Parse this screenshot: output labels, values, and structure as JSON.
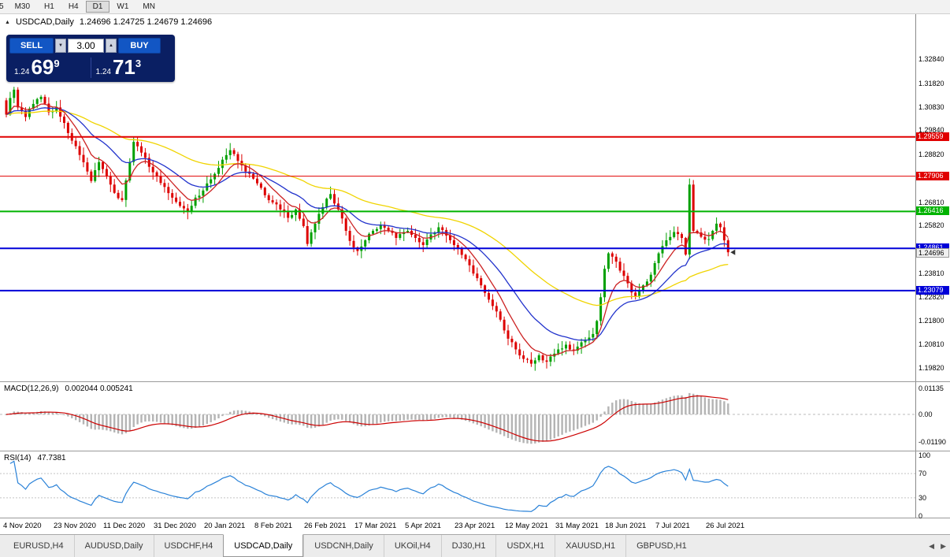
{
  "toolbar": {
    "timeframes": [
      "5",
      "M30",
      "H1",
      "H4",
      "D1",
      "W1",
      "MN"
    ],
    "active": "D1"
  },
  "chart_header": {
    "collapse": "▲",
    "title": "USDCAD,Daily",
    "ohlc": "1.24696 1.24725 1.24679 1.24696"
  },
  "trade_panel": {
    "sell_label": "SELL",
    "buy_label": "BUY",
    "volume": "3.00",
    "spin_down": "▼",
    "spin_up": "▲",
    "sell_price": {
      "prefix": "1.24",
      "big": "69",
      "sup": "9"
    },
    "buy_price": {
      "prefix": "1.24",
      "big": "71",
      "sup": "3"
    }
  },
  "chart_data": {
    "type": "candlestick",
    "symbol": "USDCAD",
    "timeframe": "Daily",
    "current_bar": {
      "open": 1.24696,
      "high": 1.24725,
      "low": 1.24679,
      "close": 1.24696
    },
    "price_axis_labels": [
      "1.32840",
      "1.31820",
      "1.30830",
      "1.29840",
      "1.28820",
      "1.27830",
      "1.26810",
      "1.25820",
      "1.24830",
      "1.23810",
      "1.22820",
      "1.21800",
      "1.20810",
      "1.19820"
    ],
    "date_labels": [
      "4 Nov 2020",
      "23 Nov 2020",
      "11 Dec 2020",
      "31 Dec 2020",
      "20 Jan 2021",
      "8 Feb 2021",
      "26 Feb 2021",
      "17 Mar 2021",
      "5 Apr 2021",
      "23 Apr 2021",
      "12 May 2021",
      "31 May 2021",
      "18 Jun 2021",
      "7 Jul 2021",
      "26 Jul 2021"
    ],
    "candles_per_date_gap": 13,
    "total_candles": 188,
    "first_open": 1.311,
    "up_color": "#00a000",
    "down_color": "#dd0000",
    "moving_averages": [
      {
        "period": 8,
        "color": "#cc2222"
      },
      {
        "period": 21,
        "color": "#2233cc"
      },
      {
        "period": 55,
        "color": "#f0d400"
      }
    ],
    "horizontal_lines": [
      {
        "price": 1.29559,
        "label": "1.29559",
        "color": "#e00000",
        "width": 2
      },
      {
        "price": 1.27906,
        "label": "1.27906",
        "color": "#e00000",
        "width": 1
      },
      {
        "price": 1.26416,
        "label": "1.26416",
        "color": "#00b300",
        "width": 2
      },
      {
        "price": 1.24861,
        "label": "1.24861",
        "color": "#0000d8",
        "width": 2
      },
      {
        "price": 1.23079,
        "label": "1.23079",
        "color": "#0000d8",
        "width": 2
      }
    ],
    "current_price": 1.24696,
    "current_price_label": "1.24696",
    "close_keypoints": [
      [
        0,
        1.305
      ],
      [
        1,
        1.312
      ],
      [
        2,
        1.3155
      ],
      [
        3,
        1.308
      ],
      [
        5,
        1.304
      ],
      [
        7,
        1.3095
      ],
      [
        9,
        1.3125
      ],
      [
        11,
        1.306
      ],
      [
        13,
        1.308
      ],
      [
        15,
        1.3015
      ],
      [
        17,
        1.294
      ],
      [
        19,
        1.288
      ],
      [
        21,
        1.281
      ],
      [
        22,
        1.277
      ],
      [
        24,
        1.285
      ],
      [
        26,
        1.279
      ],
      [
        28,
        1.272
      ],
      [
        30,
        1.269
      ],
      [
        32,
        1.285
      ],
      [
        33,
        1.2935
      ],
      [
        35,
        1.289
      ],
      [
        37,
        1.283
      ],
      [
        39,
        1.279
      ],
      [
        41,
        1.2745
      ],
      [
        43,
        1.27
      ],
      [
        45,
        1.2665
      ],
      [
        47,
        1.264
      ],
      [
        49,
        1.27
      ],
      [
        51,
        1.273
      ],
      [
        52,
        1.276
      ],
      [
        54,
        1.28
      ],
      [
        56,
        1.286
      ],
      [
        58,
        1.29
      ],
      [
        60,
        1.2855
      ],
      [
        62,
        1.281
      ],
      [
        64,
        1.278
      ],
      [
        65,
        1.276
      ],
      [
        67,
        1.271
      ],
      [
        69,
        1.268
      ],
      [
        71,
        1.265
      ],
      [
        73,
        1.2615
      ],
      [
        75,
        1.265
      ],
      [
        77,
        1.258
      ],
      [
        78,
        1.2505
      ],
      [
        80,
        1.259
      ],
      [
        82,
        1.266
      ],
      [
        84,
        1.2715
      ],
      [
        86,
        1.265
      ],
      [
        88,
        1.256
      ],
      [
        90,
        1.249
      ],
      [
        91,
        1.2475
      ],
      [
        93,
        1.252
      ],
      [
        95,
        1.256
      ],
      [
        97,
        1.2585
      ],
      [
        99,
        1.256
      ],
      [
        101,
        1.253
      ],
      [
        103,
        1.2555
      ],
      [
        104,
        1.256
      ],
      [
        106,
        1.253
      ],
      [
        108,
        1.25
      ],
      [
        110,
        1.2545
      ],
      [
        112,
        1.2575
      ],
      [
        114,
        1.254
      ],
      [
        116,
        1.25
      ],
      [
        117,
        1.2485
      ],
      [
        119,
        1.244
      ],
      [
        121,
        1.238
      ],
      [
        123,
        1.233
      ],
      [
        125,
        1.227
      ],
      [
        127,
        1.222
      ],
      [
        129,
        1.214
      ],
      [
        130,
        1.2105
      ],
      [
        132,
        1.206
      ],
      [
        134,
        1.202
      ],
      [
        136,
        1.2
      ],
      [
        138,
        1.2035
      ],
      [
        140,
        1.2008
      ],
      [
        141,
        1.203
      ],
      [
        143,
        1.206
      ],
      [
        145,
        1.208
      ],
      [
        147,
        1.2055
      ],
      [
        149,
        1.209
      ],
      [
        151,
        1.211
      ],
      [
        152,
        1.2125
      ],
      [
        153,
        1.218
      ],
      [
        154,
        1.228
      ],
      [
        155,
        1.24
      ],
      [
        156,
        1.2465
      ],
      [
        158,
        1.243
      ],
      [
        160,
        1.237
      ],
      [
        162,
        1.23
      ],
      [
        163,
        1.2285
      ],
      [
        165,
        1.233
      ],
      [
        167,
        1.2375
      ],
      [
        169,
        1.2465
      ],
      [
        171,
        1.252
      ],
      [
        173,
        1.2555
      ],
      [
        175,
        1.253
      ],
      [
        176,
        1.246
      ],
      [
        177,
        1.2755
      ],
      [
        178,
        1.256
      ],
      [
        180,
        1.2535
      ],
      [
        182,
        1.2525
      ],
      [
        183,
        1.256
      ],
      [
        184,
        1.259
      ],
      [
        185,
        1.2575
      ],
      [
        186,
        1.252
      ],
      [
        187,
        1.24696
      ]
    ]
  },
  "macd": {
    "label": "MACD(12,26,9)",
    "values": "0.002044 0.005241",
    "fast": 12,
    "slow": 26,
    "signal": 9,
    "axis": [
      {
        "v": 0.01135,
        "t": "0.01135"
      },
      {
        "v": 0,
        "t": "0.00"
      },
      {
        "v": -0.0119,
        "t": "-0.01190"
      }
    ],
    "bar_color": "#b4b4b4",
    "signal_color": "#cc0000"
  },
  "rsi": {
    "label": "RSI(14)",
    "value": "47.7381",
    "period": 14,
    "axis": [
      {
        "v": 100,
        "t": "100"
      },
      {
        "v": 70,
        "t": "70"
      },
      {
        "v": 30,
        "t": "30"
      },
      {
        "v": 0,
        "t": "0"
      }
    ],
    "line_color": "#2a82d8",
    "level_color": "#c4c4c4"
  },
  "tabs": {
    "items": [
      "EURUSD,H4",
      "AUDUSD,Daily",
      "USDCHF,H4",
      "USDCAD,Daily",
      "USDCNH,Daily",
      "UKOil,H4",
      "DJ30,H1",
      "USDX,H1",
      "XAUUSD,H1",
      "GBPUSD,H1"
    ],
    "active_index": 3,
    "scroll_left": "◀",
    "scroll_right": "▶"
  }
}
